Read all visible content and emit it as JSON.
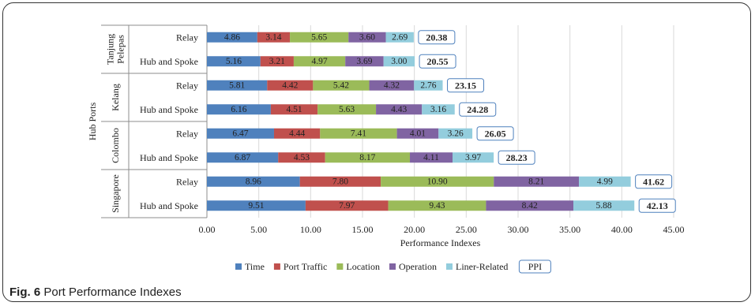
{
  "caption": {
    "fig_label": "Fig. 6",
    "text": "Port Performance Indexes"
  },
  "chart_data": {
    "type": "bar",
    "orientation": "horizontal",
    "stacked": true,
    "title": "",
    "xlabel": "Performance Indexes",
    "ylabel": "Hub Ports",
    "xlim": [
      0,
      45
    ],
    "xticks": [
      "0.00",
      "5.00",
      "10.00",
      "15.00",
      "20.00",
      "25.00",
      "30.00",
      "35.00",
      "40.00",
      "45.00"
    ],
    "grid": "vertical",
    "legend_position": "bottom",
    "groups": [
      "Tanjung Pelepas",
      "Kelang",
      "Colombo",
      "Singapore"
    ],
    "categories": [
      {
        "group": "Tanjung Pelepas",
        "label": "Relay"
      },
      {
        "group": "Tanjung Pelepas",
        "label": "Hub and Spoke"
      },
      {
        "group": "Kelang",
        "label": "Relay"
      },
      {
        "group": "Kelang",
        "label": "Hub and Spoke"
      },
      {
        "group": "Colombo",
        "label": "Relay"
      },
      {
        "group": "Colombo",
        "label": "Hub and Spoke"
      },
      {
        "group": "Singapore",
        "label": "Relay"
      },
      {
        "group": "Singapore",
        "label": "Hub and Spoke"
      }
    ],
    "series": [
      {
        "name": "Time",
        "color": "#4f81bd",
        "values": [
          4.86,
          5.16,
          5.81,
          6.16,
          6.47,
          6.87,
          8.96,
          9.51
        ],
        "labels": [
          "4.86",
          "5.16",
          "5.81",
          "6.16",
          "6.47",
          "6.87",
          "8.96",
          "9.51"
        ]
      },
      {
        "name": "Port Traffic",
        "color": "#c0504d",
        "values": [
          3.14,
          3.21,
          4.42,
          4.51,
          4.44,
          4.53,
          7.8,
          7.97
        ],
        "labels": [
          "3.14",
          "3.21",
          "4.42",
          "4.51",
          "4.44",
          "4.53",
          "7.80",
          "7.97"
        ]
      },
      {
        "name": "Location",
        "color": "#9bbb59",
        "values": [
          5.65,
          4.97,
          5.42,
          5.63,
          7.41,
          8.17,
          10.9,
          9.43
        ],
        "labels": [
          "5.65",
          "4.97",
          "5.42",
          "5.63",
          "7.41",
          "8.17",
          "10.90",
          "9.43"
        ]
      },
      {
        "name": "Operation",
        "color": "#8064a2",
        "values": [
          3.6,
          3.69,
          4.32,
          4.43,
          4.01,
          4.11,
          8.21,
          8.42
        ],
        "labels": [
          "3.60",
          "3.69",
          "4.32",
          "4.43",
          "4.01",
          "4.11",
          "8.21",
          "8.42"
        ]
      },
      {
        "name": "Liner-Related",
        "color": "#93cddd",
        "values": [
          2.69,
          3.0,
          2.76,
          3.16,
          3.26,
          3.97,
          4.99,
          5.88
        ],
        "labels": [
          "2.69",
          "3.00",
          "2.76",
          "3.16",
          "3.26",
          "3.97",
          "4.99",
          "5.88"
        ]
      }
    ],
    "totals": {
      "name": "PPI",
      "values": [
        20.38,
        20.55,
        23.15,
        24.28,
        26.05,
        28.23,
        41.62,
        42.13
      ],
      "labels": [
        "20.38",
        "20.55",
        "23.15",
        "24.28",
        "26.05",
        "28.23",
        "41.62",
        "42.13"
      ]
    }
  }
}
